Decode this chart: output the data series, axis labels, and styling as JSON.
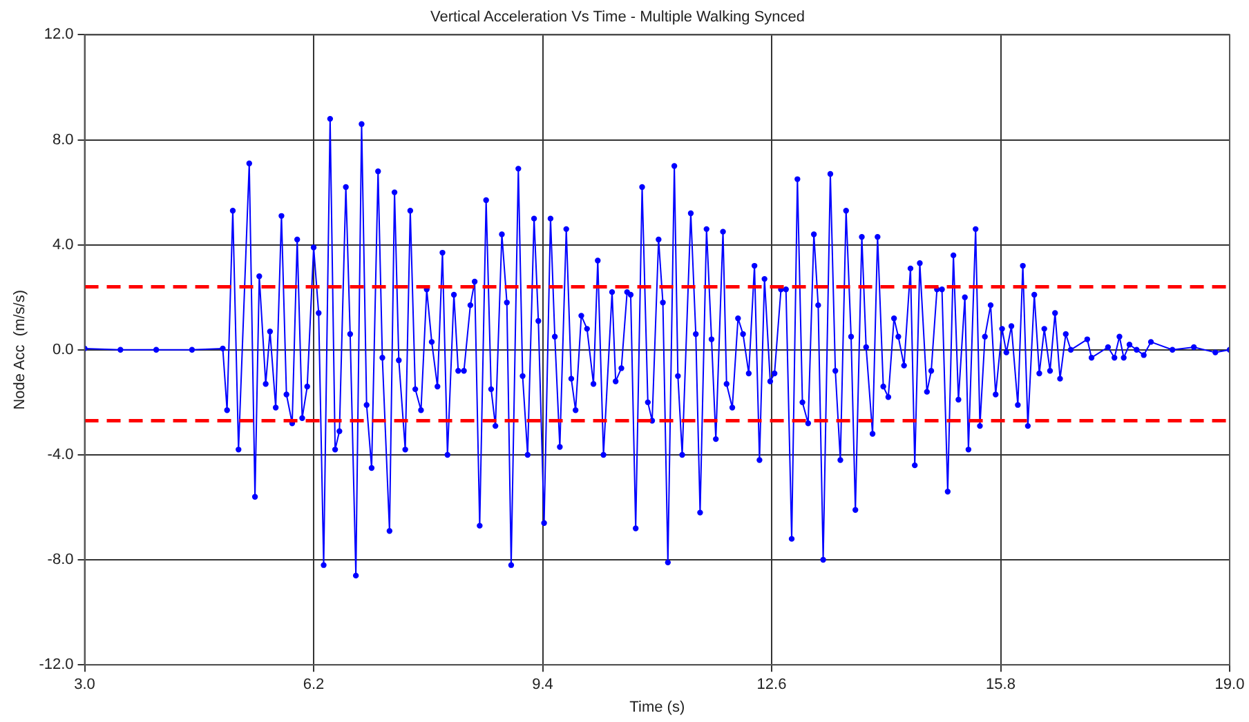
{
  "chart_data": {
    "type": "line",
    "title": "Vertical Acceleration Vs Time - Multiple Walking Synced",
    "xlabel": "Time (s)",
    "ylabel": "Node Acc  (m/s/s)",
    "xlim": [
      3.0,
      19.0
    ],
    "xticks": [
      {
        "value": 3.0,
        "label": "3.0"
      },
      {
        "value": 6.2,
        "label": "6.2"
      },
      {
        "value": 9.4,
        "label": "9.4"
      },
      {
        "value": 12.6,
        "label": "12.6"
      },
      {
        "value": 15.8,
        "label": "15.8"
      },
      {
        "value": 19.0,
        "label": "19.0"
      }
    ],
    "ylim": [
      -12.0,
      12.0
    ],
    "yticks": [
      {
        "value": -12,
        "label": "-12.0"
      },
      {
        "value": -8,
        "label": "-8.0"
      },
      {
        "value": -4,
        "label": "-4.0"
      },
      {
        "value": 0,
        "label": "0.0"
      },
      {
        "value": 4,
        "label": "4.0"
      },
      {
        "value": 8,
        "label": "8.0"
      },
      {
        "value": 12,
        "label": "12.0"
      }
    ],
    "grid": true,
    "legend": false,
    "marker": "circle",
    "line_style": "solid",
    "ref_lines": [
      {
        "axis": "y",
        "value": 2.4,
        "color": "#ff0000",
        "line_style": "dashed"
      },
      {
        "axis": "y",
        "value": -2.7,
        "color": "#ff0000",
        "line_style": "dashed"
      }
    ],
    "series": [
      {
        "color": "#0000ff",
        "x": [
          3.0,
          3.5,
          4.0,
          4.5,
          4.93,
          4.99,
          5.07,
          5.15,
          5.3,
          5.38,
          5.44,
          5.53,
          5.59,
          5.67,
          5.75,
          5.82,
          5.9,
          5.97,
          6.04,
          6.11,
          6.2,
          6.27,
          6.34,
          6.43,
          6.5,
          6.56,
          6.65,
          6.71,
          6.79,
          6.87,
          6.94,
          7.01,
          7.1,
          7.16,
          7.26,
          7.33,
          7.39,
          7.48,
          7.55,
          7.62,
          7.7,
          7.78,
          7.85,
          7.93,
          8.0,
          8.07,
          8.16,
          8.22,
          8.3,
          8.39,
          8.45,
          8.52,
          8.61,
          8.68,
          8.74,
          8.83,
          8.9,
          8.96,
          9.06,
          9.12,
          9.19,
          9.28,
          9.34,
          9.42,
          9.51,
          9.57,
          9.64,
          9.73,
          9.8,
          9.86,
          9.94,
          10.02,
          10.11,
          10.17,
          10.25,
          10.37,
          10.42,
          10.5,
          10.58,
          10.63,
          10.7,
          10.79,
          10.87,
          10.93,
          11.02,
          11.08,
          11.15,
          11.24,
          11.29,
          11.35,
          11.47,
          11.54,
          11.6,
          11.69,
          11.76,
          11.82,
          11.92,
          11.97,
          12.05,
          12.13,
          12.2,
          12.28,
          12.36,
          12.43,
          12.5,
          12.58,
          12.64,
          12.73,
          12.8,
          12.88,
          12.96,
          13.03,
          13.11,
          13.19,
          13.25,
          13.32,
          13.42,
          13.49,
          13.56,
          13.64,
          13.71,
          13.77,
          13.86,
          13.92,
          14.01,
          14.08,
          14.16,
          14.23,
          14.31,
          14.37,
          14.45,
          14.54,
          14.6,
          14.67,
          14.77,
          14.83,
          14.91,
          14.98,
          15.06,
          15.14,
          15.21,
          15.3,
          15.35,
          15.45,
          15.51,
          15.58,
          15.66,
          15.73,
          15.82,
          15.88,
          15.95,
          16.04,
          16.11,
          16.18,
          16.27,
          16.34,
          16.41,
          16.49,
          16.56,
          16.63,
          16.71,
          16.78,
          17.01,
          17.07,
          17.3,
          17.39,
          17.46,
          17.52,
          17.6,
          17.7,
          17.8,
          17.9,
          18.2,
          18.5,
          18.8,
          19.0
        ],
        "values": [
          0.05,
          0.0,
          0.0,
          0.0,
          0.05,
          -2.3,
          5.3,
          -3.8,
          7.1,
          -5.6,
          2.8,
          -1.3,
          0.7,
          -2.2,
          5.1,
          -1.7,
          -2.8,
          4.2,
          -2.6,
          -1.4,
          3.9,
          1.4,
          -8.2,
          8.8,
          -3.8,
          -3.1,
          6.2,
          0.6,
          -8.6,
          8.6,
          -2.1,
          -4.5,
          6.8,
          -0.3,
          -6.9,
          6.0,
          -0.4,
          -3.8,
          5.3,
          -1.5,
          -2.3,
          2.3,
          0.3,
          -1.4,
          3.7,
          -4.0,
          2.1,
          -0.8,
          -0.8,
          1.7,
          2.6,
          -6.7,
          5.7,
          -1.5,
          -2.9,
          4.4,
          1.8,
          -8.2,
          6.9,
          -1.0,
          -4.0,
          5.0,
          1.1,
          -6.6,
          5.0,
          0.5,
          -3.7,
          4.6,
          -1.1,
          -2.3,
          1.3,
          0.8,
          -1.3,
          3.4,
          -4.0,
          2.2,
          -1.2,
          -0.7,
          2.2,
          2.1,
          -6.8,
          6.2,
          -2.0,
          -2.7,
          4.2,
          1.8,
          -8.1,
          7.0,
          -1.0,
          -4.0,
          5.2,
          0.6,
          -6.2,
          4.6,
          0.4,
          -3.4,
          4.5,
          -1.3,
          -2.2,
          1.2,
          0.6,
          -0.9,
          3.2,
          -4.2,
          2.7,
          -1.2,
          -0.9,
          2.3,
          2.3,
          -7.2,
          6.5,
          -2.0,
          -2.8,
          4.4,
          1.7,
          -8.0,
          6.7,
          -0.8,
          -4.2,
          5.3,
          0.5,
          -6.1,
          4.3,
          0.1,
          -3.2,
          4.3,
          -1.4,
          -1.8,
          1.2,
          0.5,
          -0.6,
          3.1,
          -4.4,
          3.3,
          -1.6,
          -0.8,
          2.3,
          2.3,
          -5.4,
          3.6,
          -1.9,
          2.0,
          -3.8,
          4.6,
          -2.9,
          0.5,
          1.7,
          -1.7,
          0.8,
          -0.1,
          0.9,
          -2.1,
          3.2,
          -2.9,
          2.1,
          -0.9,
          0.8,
          -0.8,
          1.4,
          -1.1,
          0.6,
          0.0,
          0.4,
          -0.3,
          0.1,
          -0.3,
          0.5,
          -0.3,
          0.2,
          0.0,
          -0.2,
          0.3,
          0.0,
          0.1,
          -0.1,
          0.0
        ]
      }
    ]
  }
}
